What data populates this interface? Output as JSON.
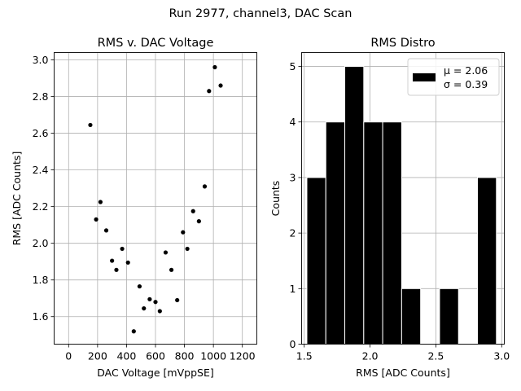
{
  "suptitle": "Run 2977, channel3, DAC Scan",
  "chart_data": [
    {
      "type": "scatter",
      "title": "RMS v. DAC Voltage",
      "xlabel": "DAC Voltage [mVppSE]",
      "ylabel": "RMS [ADC Counts]",
      "xlim": [
        -100,
        1300
      ],
      "ylim": [
        1.45,
        3.04
      ],
      "xticks": [
        0,
        200,
        400,
        600,
        800,
        1000,
        1200
      ],
      "xtick_labels": [
        "0",
        "200",
        "400",
        "600",
        "800",
        "1000",
        "1200"
      ],
      "yticks": [
        1.6,
        1.8,
        2.0,
        2.2,
        2.4,
        2.6,
        2.8,
        3.0
      ],
      "ytick_labels": [
        "1.6",
        "1.8",
        "2.0",
        "2.2",
        "2.4",
        "2.6",
        "2.8",
        "3.0"
      ],
      "grid": true,
      "color": "#000000",
      "points": [
        {
          "x": 150,
          "y": 2.645
        },
        {
          "x": 190,
          "y": 2.13
        },
        {
          "x": 220,
          "y": 2.225
        },
        {
          "x": 260,
          "y": 2.07
        },
        {
          "x": 300,
          "y": 1.905
        },
        {
          "x": 330,
          "y": 1.855
        },
        {
          "x": 370,
          "y": 1.97
        },
        {
          "x": 410,
          "y": 1.895
        },
        {
          "x": 450,
          "y": 1.52
        },
        {
          "x": 490,
          "y": 1.765
        },
        {
          "x": 520,
          "y": 1.645
        },
        {
          "x": 560,
          "y": 1.695
        },
        {
          "x": 600,
          "y": 1.68
        },
        {
          "x": 630,
          "y": 1.63
        },
        {
          "x": 670,
          "y": 1.95
        },
        {
          "x": 710,
          "y": 1.855
        },
        {
          "x": 750,
          "y": 1.69
        },
        {
          "x": 790,
          "y": 2.06
        },
        {
          "x": 820,
          "y": 1.97
        },
        {
          "x": 860,
          "y": 2.175
        },
        {
          "x": 900,
          "y": 2.12
        },
        {
          "x": 940,
          "y": 2.31
        },
        {
          "x": 970,
          "y": 2.83
        },
        {
          "x": 1010,
          "y": 2.96
        },
        {
          "x": 1050,
          "y": 2.86
        }
      ]
    },
    {
      "type": "bar",
      "title": "RMS Distro",
      "xlabel": "RMS [ADC Counts]",
      "ylabel": "Counts",
      "xlim": [
        1.48,
        3.02
      ],
      "ylim": [
        0,
        5.25
      ],
      "xticks": [
        1.5,
        2.0,
        2.5,
        3.0
      ],
      "xtick_labels": [
        "1.5",
        "2.0",
        "2.5",
        "3.0"
      ],
      "yticks": [
        0,
        1,
        2,
        3,
        4,
        5
      ],
      "ytick_labels": [
        "0",
        "1",
        "2",
        "3",
        "4",
        "5"
      ],
      "grid": true,
      "color": "#000000",
      "edgecolor": "#ffffff",
      "bins": [
        {
          "x0": 1.52,
          "x1": 1.664,
          "count": 3
        },
        {
          "x0": 1.664,
          "x1": 1.808,
          "count": 4
        },
        {
          "x0": 1.808,
          "x1": 1.952,
          "count": 5
        },
        {
          "x0": 1.952,
          "x1": 2.096,
          "count": 4
        },
        {
          "x0": 2.096,
          "x1": 2.24,
          "count": 4
        },
        {
          "x0": 2.24,
          "x1": 2.384,
          "count": 1
        },
        {
          "x0": 2.384,
          "x1": 2.528,
          "count": 0
        },
        {
          "x0": 2.528,
          "x1": 2.672,
          "count": 1
        },
        {
          "x0": 2.672,
          "x1": 2.816,
          "count": 0
        },
        {
          "x0": 2.816,
          "x1": 2.96,
          "count": 3
        }
      ],
      "legend": {
        "placement": "top-right",
        "lines": [
          "μ = 2.06",
          "σ = 0.39"
        ]
      }
    }
  ]
}
